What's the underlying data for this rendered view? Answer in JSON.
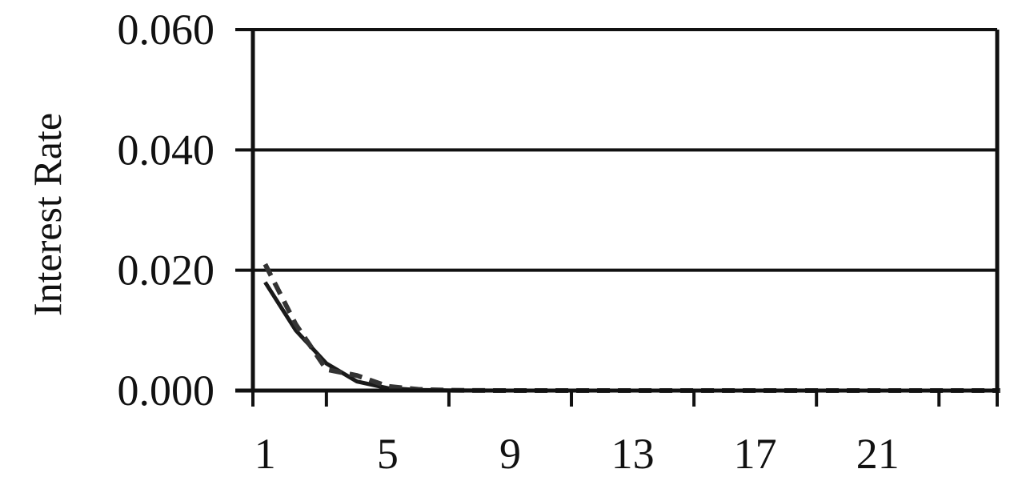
{
  "chart_data": {
    "type": "line",
    "title": "",
    "xlabel": "",
    "ylabel": "Interest Rate",
    "x": [
      1,
      2,
      3,
      4,
      5,
      6,
      7,
      8,
      9,
      10,
      11,
      12,
      13,
      14,
      15,
      16,
      17,
      18,
      19,
      20,
      21,
      22,
      23,
      24,
      25
    ],
    "xticks": [
      1,
      5,
      9,
      13,
      17,
      21
    ],
    "yticks": [
      0.0,
      0.02,
      0.04,
      0.06
    ],
    "ytick_labels": [
      "0.000",
      "0.020",
      "0.040",
      "0.060"
    ],
    "xlim": [
      0.6,
      24.9
    ],
    "ylim": [
      0,
      0.06
    ],
    "grid": "horizontal",
    "series": [
      {
        "style": "solid",
        "color": "#1a1a1a",
        "values": [
          0.018,
          0.01,
          0.0045,
          0.0015,
          0.0004,
          0.0001,
          3e-05,
          1e-05,
          0,
          0,
          0,
          0,
          0,
          0,
          0,
          0,
          0,
          0,
          0,
          0,
          0,
          0,
          0,
          0,
          0
        ]
      },
      {
        "style": "dashed",
        "color": "#333333",
        "values": [
          0.021,
          0.011,
          0.0035,
          0.0025,
          0.0007,
          0.0002,
          5e-05,
          1e-05,
          0,
          0,
          0,
          0,
          0,
          0,
          0,
          0,
          0,
          0,
          0,
          0,
          0,
          0,
          0,
          0,
          0
        ]
      }
    ]
  }
}
